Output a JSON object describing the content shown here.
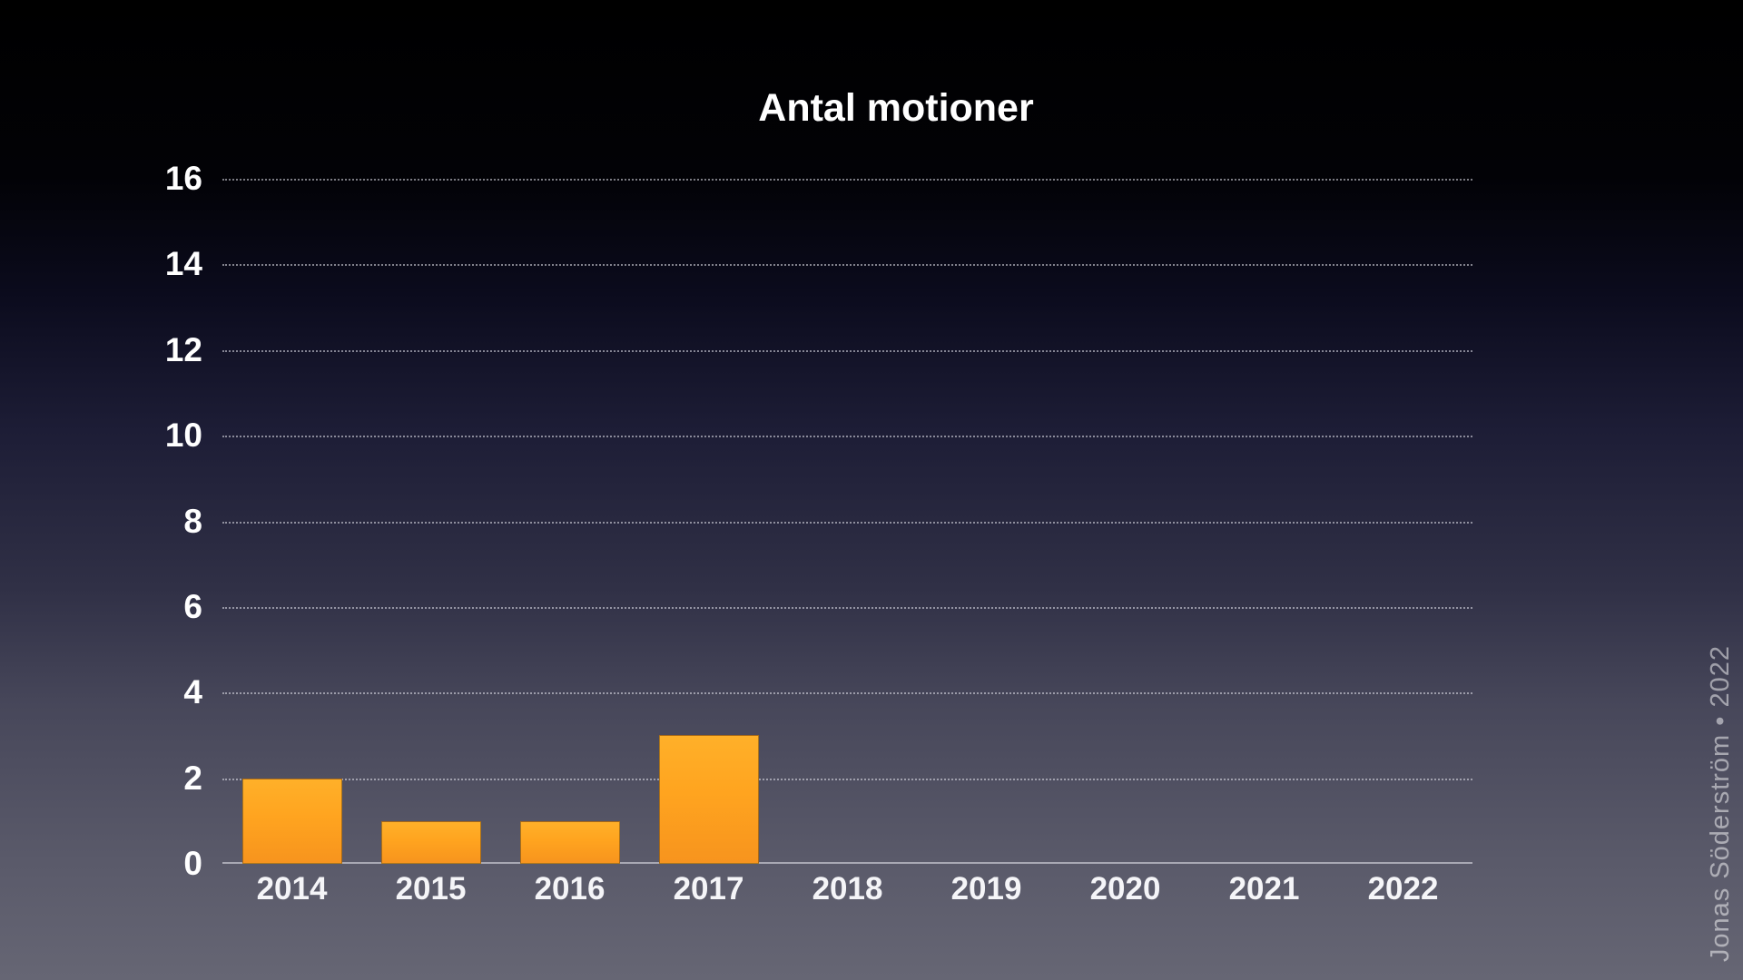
{
  "chart_data": {
    "type": "bar",
    "title": "Antal motioner",
    "categories": [
      "2014",
      "2015",
      "2016",
      "2017",
      "2018",
      "2019",
      "2020",
      "2021",
      "2022"
    ],
    "values": [
      2,
      1,
      1,
      3,
      0,
      0,
      0,
      0,
      0
    ],
    "xlabel": "",
    "ylabel": "",
    "ylim": [
      0,
      16
    ],
    "y_ticks": [
      16,
      14,
      12,
      10,
      8,
      6,
      4,
      2,
      0
    ],
    "grid": "horizontal-dotted",
    "legend": "none",
    "bar_color_top": "#ffb029",
    "bar_color_bottom": "#f7941e"
  },
  "attribution": "Jonas Söderström • 2022",
  "colors": {
    "title_text": "#ffffff",
    "axis_label_text": "#ffffff",
    "gridline": "rgba(228,228,236,0.55)",
    "axis_line": "rgba(176,176,187,0.9)",
    "attribution_text": "rgba(255,255,255,0.5)",
    "background_top": "#000000",
    "background_middle": "#1d1d36",
    "background_bottom": "#666674"
  }
}
